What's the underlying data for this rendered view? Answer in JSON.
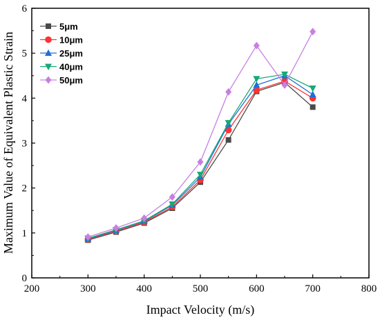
{
  "chart_data": {
    "type": "line",
    "title": "",
    "xlabel": "Impact Velocity (m/s)",
    "ylabel": "Maximum Value of Equivalent Plastic Strain",
    "xlim": [
      200,
      800
    ],
    "ylim": [
      0,
      6
    ],
    "xticks": [
      "200",
      "300",
      "400",
      "500",
      "600",
      "700",
      "800"
    ],
    "yticks": [
      "0",
      "1",
      "2",
      "3",
      "4",
      "5",
      "6"
    ],
    "grid": false,
    "legend_position": "top-left",
    "x": [
      300,
      350,
      400,
      450,
      500,
      550,
      600,
      650,
      700
    ],
    "series": [
      {
        "name": "5μm",
        "color": "#4a4a4a",
        "marker": "square",
        "values": [
          0.84,
          1.02,
          1.22,
          1.55,
          2.13,
          3.07,
          4.15,
          4.35,
          3.8
        ]
      },
      {
        "name": "10μm",
        "color": "#ff3333",
        "marker": "circle",
        "values": [
          0.86,
          1.04,
          1.24,
          1.58,
          2.18,
          3.29,
          4.18,
          4.38,
          4.0
        ]
      },
      {
        "name": "25μm",
        "color": "#1f6fd6",
        "marker": "triangle-up",
        "values": [
          0.87,
          1.06,
          1.26,
          1.62,
          2.24,
          3.42,
          4.29,
          4.5,
          4.08
        ]
      },
      {
        "name": "40μm",
        "color": "#18a878",
        "marker": "triangle-down",
        "values": [
          0.88,
          1.07,
          1.27,
          1.64,
          2.3,
          3.45,
          4.43,
          4.53,
          4.22
        ]
      },
      {
        "name": "50μm",
        "color": "#c680e0",
        "marker": "diamond",
        "values": [
          0.91,
          1.11,
          1.33,
          1.8,
          2.58,
          4.14,
          5.17,
          4.29,
          5.48
        ]
      }
    ]
  }
}
